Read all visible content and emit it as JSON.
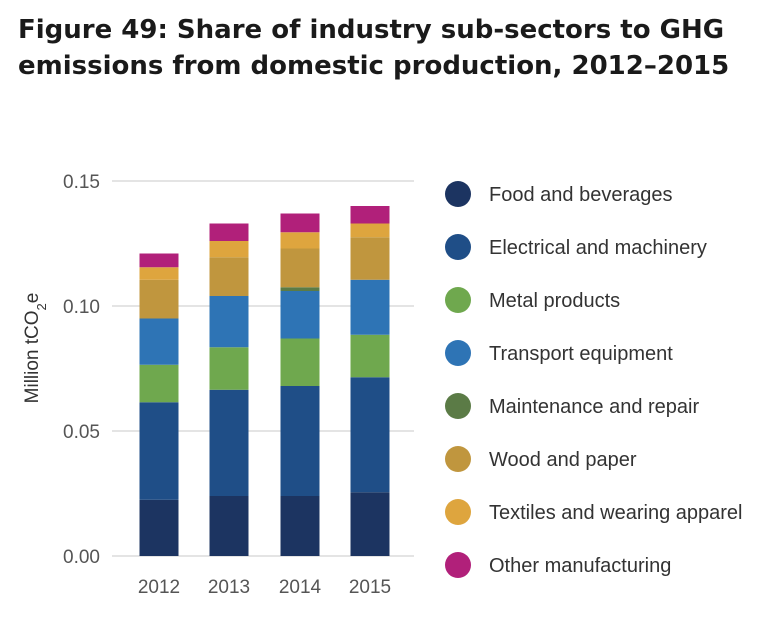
{
  "figure": {
    "title": "Figure 49: Share of industry sub-sectors to GHG emissions from domestic production, 2012–2015"
  },
  "chart_data": {
    "type": "bar",
    "stacked": true,
    "categories": [
      "2012",
      "2013",
      "2014",
      "2015"
    ],
    "ylabel": "Million tCO",
    "ylabel_sub": "2",
    "ylabel_suffix": "e",
    "ylim": [
      0,
      0.15
    ],
    "yticks": [
      0,
      0.05,
      0.1,
      0.15
    ],
    "ytick_labels": [
      "0.00",
      "0.05",
      "0.10",
      "0.15"
    ],
    "grid": true,
    "legend_position": "right",
    "series": [
      {
        "name": "Food and beverages",
        "color": "#1c3461",
        "values": [
          0.0225,
          0.024,
          0.024,
          0.0255
        ]
      },
      {
        "name": "Electrical and machinery",
        "color": "#1f4e87",
        "values": [
          0.039,
          0.0425,
          0.044,
          0.046
        ]
      },
      {
        "name": "Metal products",
        "color": "#6fa84e",
        "values": [
          0.015,
          0.017,
          0.019,
          0.017
        ]
      },
      {
        "name": "Transport equipment",
        "color": "#2e74b5",
        "values": [
          0.0185,
          0.0205,
          0.019,
          0.022
        ]
      },
      {
        "name": "Maintenance and repair",
        "color": "#5b7b46",
        "values": [
          0.0,
          0.0,
          0.0015,
          0.0
        ]
      },
      {
        "name": "Wood and paper",
        "color": "#c0963e",
        "values": [
          0.0155,
          0.0155,
          0.0155,
          0.017
        ]
      },
      {
        "name": "Textiles and wearing apparel",
        "color": "#dea53e",
        "values": [
          0.005,
          0.0065,
          0.0065,
          0.0055
        ]
      },
      {
        "name": "Other manufacturing",
        "color": "#b1207a",
        "values": [
          0.0055,
          0.007,
          0.0075,
          0.007
        ]
      }
    ]
  }
}
